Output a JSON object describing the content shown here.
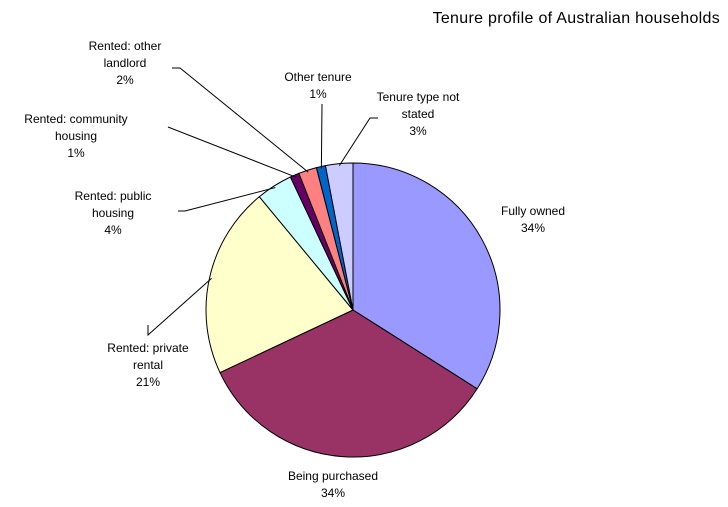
{
  "chart_data": {
    "type": "pie",
    "title": "Tenure profile of Australian households",
    "categories": [
      "Fully owned",
      "Being purchased",
      "Rented: private rental",
      "Rented: public housing",
      "Rented: community housing",
      "Rented: other landlord",
      "Other tenure",
      "Tenure type not stated"
    ],
    "values": [
      34,
      34,
      21,
      4,
      1,
      2,
      1,
      3
    ],
    "value_labels": [
      "34%",
      "34%",
      "21%",
      "4%",
      "1%",
      "2%",
      "1%",
      "3%"
    ],
    "colors": [
      "#9999ff",
      "#993366",
      "#ffffcc",
      "#ccffff",
      "#660066",
      "#ff8080",
      "#0066cc",
      "#ccccff"
    ]
  }
}
